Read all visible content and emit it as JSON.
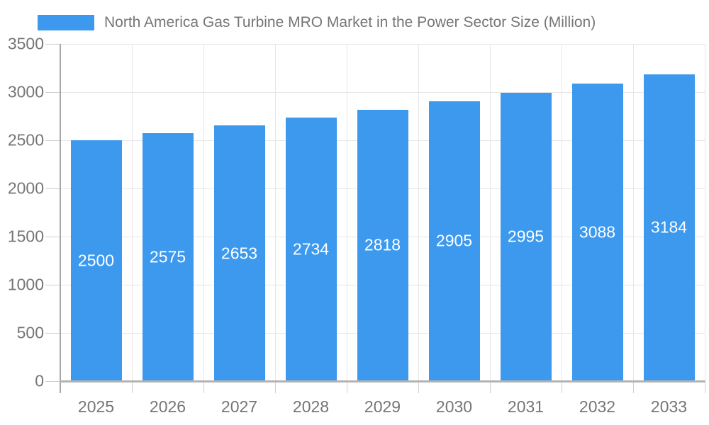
{
  "legend": {
    "label": "North America Gas Turbine MRO Market in the Power Sector Size (Million)"
  },
  "chart_data": {
    "type": "bar",
    "title": "North America Gas Turbine MRO Market in the Power Sector Size (Million)",
    "series": [
      {
        "name": "North America Gas Turbine MRO Market in the Power Sector Size (Million)",
        "values": [
          2500,
          2575,
          2653,
          2734,
          2818,
          2905,
          2995,
          3088,
          3184
        ]
      }
    ],
    "categories": [
      "2025",
      "2026",
      "2027",
      "2028",
      "2029",
      "2030",
      "2031",
      "2032",
      "2033"
    ],
    "xlabel": "",
    "ylabel": "",
    "ylim": [
      0,
      3500
    ],
    "yticks": [
      0,
      500,
      1000,
      1500,
      2000,
      2500,
      3000,
      3500
    ],
    "grid": true,
    "legend_position": "top-left",
    "value_labels": "inside-center"
  },
  "colors": {
    "bar": "#3c99ee",
    "value_label": "#ffffff",
    "axis_text": "#757575",
    "legend_text": "#757575",
    "gridline": "#e6e6e6",
    "axis_line": "#a6a6a6",
    "baseline": "#b3b3b3",
    "tick": "#cfcfcf",
    "background": "#ffffff"
  }
}
